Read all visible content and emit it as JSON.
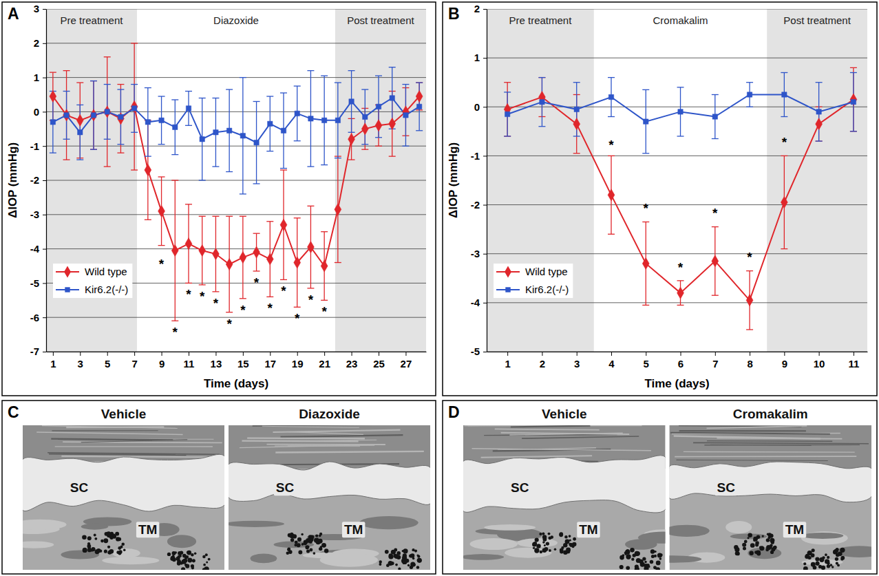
{
  "chart_data": [
    {
      "type": "line",
      "panel_label": "A",
      "x_label": "Time (days)",
      "y_label": "ΔIOP (mmHg)",
      "x": [
        1,
        2,
        3,
        4,
        5,
        6,
        7,
        8,
        9,
        10,
        11,
        12,
        13,
        14,
        15,
        16,
        17,
        18,
        19,
        20,
        21,
        22,
        23,
        24,
        25,
        26,
        27,
        28
      ],
      "xlim": [
        0.5,
        28.5
      ],
      "xticks": [
        1,
        3,
        5,
        7,
        9,
        11,
        13,
        15,
        17,
        19,
        21,
        23,
        25,
        27
      ],
      "ylim": [
        -7,
        3
      ],
      "yticks": [
        -7,
        -6,
        -5,
        -4,
        -3,
        -2,
        -1,
        0,
        1,
        2,
        3
      ],
      "grid": true,
      "legend": "lower left",
      "regions": [
        {
          "label": "Pre treatment",
          "start": 0.5,
          "end": 7.2,
          "color": "#e3e3e3"
        },
        {
          "label": "Diazoxide",
          "start": 7.2,
          "end": 21.8,
          "color": "#ffffff"
        },
        {
          "label": "Post treatment",
          "start": 21.8,
          "end": 28.5,
          "color": "#e3e3e3"
        }
      ],
      "series": [
        {
          "name": "Wild type",
          "color": "#e0262b",
          "marker": "diamond",
          "values": [
            0.45,
            -0.1,
            -0.25,
            -0.1,
            0,
            -0.2,
            0.15,
            -1.7,
            -2.9,
            -4.05,
            -3.85,
            -4.05,
            -4.15,
            -4.45,
            -4.25,
            -4.1,
            -4.3,
            -3.3,
            -4.4,
            -3.95,
            -4.5,
            -2.85,
            -0.8,
            -0.5,
            -0.4,
            -0.35,
            0,
            0.45
          ],
          "errors": [
            0.7,
            1.3,
            1.1,
            1.0,
            1.6,
            1.0,
            1.85,
            1.45,
            1.0,
            2.05,
            1.15,
            1.0,
            1.1,
            1.4,
            1.2,
            0.55,
            1.1,
            1.6,
            1.3,
            1.2,
            1.0,
            1.55,
            0.6,
            0.6,
            0.6,
            0.95,
            0.7,
            0.4
          ]
        },
        {
          "name": "Kir6.2(-/-)",
          "color": "#2e55c9",
          "marker": "square",
          "values": [
            -0.3,
            -0.1,
            -0.6,
            -0.1,
            0,
            -0.15,
            0.1,
            -0.3,
            -0.25,
            -0.45,
            0.1,
            -0.8,
            -0.6,
            -0.55,
            -0.7,
            -0.9,
            -0.35,
            -0.55,
            -0.05,
            -0.2,
            -0.25,
            -0.25,
            0.3,
            -0.15,
            0.15,
            0.4,
            -0.1,
            0.15
          ],
          "errors": [
            0.9,
            0.7,
            0.8,
            1.0,
            0.8,
            0.8,
            0.7,
            1.0,
            0.7,
            0.8,
            0.5,
            1.2,
            1.0,
            1.2,
            1.7,
            1.2,
            0.8,
            1.1,
            0.8,
            1.4,
            1.3,
            1.1,
            0.9,
            0.8,
            0.9,
            0.9,
            0.9,
            0.7
          ]
        }
      ],
      "annotations": [
        {
          "text": "*",
          "x": 9,
          "y": -4.4
        },
        {
          "text": "*",
          "x": 10,
          "y": -6.4
        },
        {
          "text": "*",
          "x": 11,
          "y": -5.3
        },
        {
          "text": "*",
          "x": 12,
          "y": -5.35
        },
        {
          "text": "*",
          "x": 13,
          "y": -5.55
        },
        {
          "text": "*",
          "x": 14,
          "y": -6.15
        },
        {
          "text": "*",
          "x": 15,
          "y": -5.75
        },
        {
          "text": "*",
          "x": 16,
          "y": -4.95
        },
        {
          "text": "*",
          "x": 17,
          "y": -5.7
        },
        {
          "text": "*",
          "x": 18,
          "y": -5.2
        },
        {
          "text": "*",
          "x": 19,
          "y": -6.0
        },
        {
          "text": "*",
          "x": 20,
          "y": -5.45
        },
        {
          "text": "*",
          "x": 21,
          "y": -5.8
        }
      ]
    },
    {
      "type": "line",
      "panel_label": "B",
      "x_label": "Time (days)",
      "y_label": "ΔIOP (mmHg)",
      "x": [
        1,
        2,
        3,
        4,
        5,
        6,
        7,
        8,
        9,
        10,
        11
      ],
      "xlim": [
        0.4,
        11.4
      ],
      "xticks": [
        1,
        2,
        3,
        4,
        5,
        6,
        7,
        8,
        9,
        10,
        11
      ],
      "ylim": [
        -5,
        2
      ],
      "yticks": [
        -5,
        -4,
        -3,
        -2,
        -1,
        0,
        1,
        2
      ],
      "grid": true,
      "legend": "lower left",
      "regions": [
        {
          "label": "Pre treatment",
          "start": 0.4,
          "end": 3.5,
          "color": "#e3e3e3"
        },
        {
          "label": "Cromakalim",
          "start": 3.5,
          "end": 8.5,
          "color": "#ffffff"
        },
        {
          "label": "Post treatment",
          "start": 8.5,
          "end": 11.4,
          "color": "#e3e3e3"
        }
      ],
      "series": [
        {
          "name": "Wild type",
          "color": "#e0262b",
          "marker": "diamond",
          "values": [
            -0.05,
            0.2,
            -0.35,
            -1.8,
            -3.2,
            -3.8,
            -3.15,
            -3.95,
            -1.95,
            -0.35,
            0.15
          ],
          "errors": [
            0.55,
            0.4,
            0.6,
            0.8,
            0.85,
            0.25,
            0.7,
            0.6,
            0.95,
            0.35,
            0.65
          ]
        },
        {
          "name": "Kir6.2(-/-)",
          "color": "#2e55c9",
          "marker": "square",
          "values": [
            -0.15,
            0.1,
            -0.05,
            0.2,
            -0.3,
            -0.1,
            -0.2,
            0.25,
            0.25,
            -0.1,
            0.1
          ],
          "errors": [
            0.45,
            0.5,
            0.55,
            0.4,
            0.65,
            0.5,
            0.45,
            0.25,
            0.45,
            0.6,
            0.6
          ]
        }
      ],
      "annotations": [
        {
          "text": "*",
          "x": 4,
          "y": -0.75
        },
        {
          "text": "*",
          "x": 5,
          "y": -2.05
        },
        {
          "text": "*",
          "x": 6,
          "y": -3.25
        },
        {
          "text": "*",
          "x": 7,
          "y": -2.15
        },
        {
          "text": "*",
          "x": 8,
          "y": -3.05
        },
        {
          "text": "*",
          "x": 9,
          "y": -0.7
        }
      ]
    }
  ],
  "micrographs": [
    {
      "panel_label": "C",
      "images": [
        {
          "title": "Vehicle",
          "labels": [
            "SC",
            "TM"
          ]
        },
        {
          "title": "Diazoxide",
          "labels": [
            "SC",
            "TM"
          ]
        }
      ]
    },
    {
      "panel_label": "D",
      "images": [
        {
          "title": "Vehicle",
          "labels": [
            "SC",
            "TM"
          ]
        },
        {
          "title": "Cromakalim",
          "labels": [
            "SC",
            "TM"
          ]
        }
      ]
    }
  ]
}
